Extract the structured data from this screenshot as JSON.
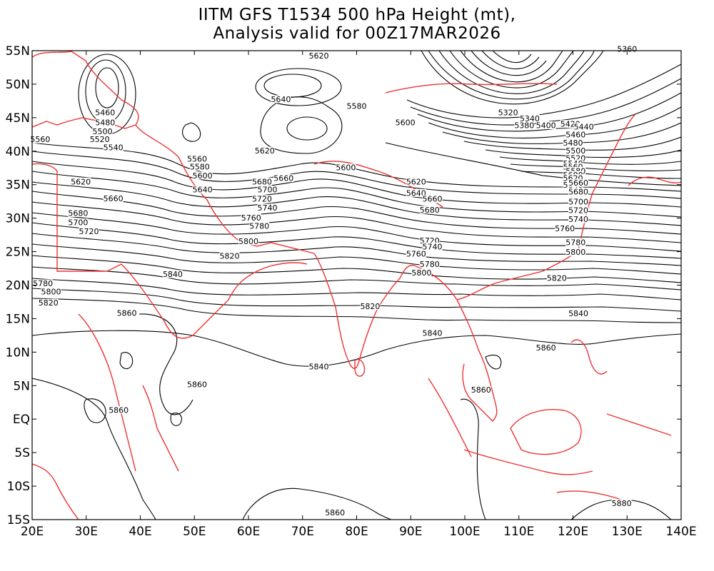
{
  "title": {
    "line1": "IITM GFS T1534 500 hPa Height (mt),",
    "line2": "Analysis valid for 00Z17MAR2026"
  },
  "axes": {
    "lat_labels": [
      "55N",
      "50N",
      "45N",
      "40N",
      "35N",
      "30N",
      "25N",
      "20N",
      "15N",
      "10N",
      "5N",
      "EQ",
      "5S",
      "10S",
      "15S"
    ],
    "lon_labels": [
      "20E",
      "30E",
      "40E",
      "50E",
      "60E",
      "70E",
      "80E",
      "90E",
      "100E",
      "110E",
      "120E",
      "130E",
      "140E"
    ],
    "lat_range": [
      -15,
      55
    ],
    "lon_range": [
      20,
      140
    ]
  },
  "colors": {
    "contour": "#000000",
    "coastline": "#ee3333"
  },
  "contour_labels": [
    {
      "text": "5620",
      "lon": 73,
      "lat": 54
    },
    {
      "text": "5360",
      "lon": 130,
      "lat": 55
    },
    {
      "text": "5640",
      "lon": 66,
      "lat": 47.5
    },
    {
      "text": "5580",
      "lon": 80,
      "lat": 46.5
    },
    {
      "text": "5460",
      "lon": 33.5,
      "lat": 45.5
    },
    {
      "text": "5480",
      "lon": 33.5,
      "lat": 44
    },
    {
      "text": "5500",
      "lon": 33,
      "lat": 42.7
    },
    {
      "text": "5520",
      "lon": 32.5,
      "lat": 41.5
    },
    {
      "text": "5540",
      "lon": 35,
      "lat": 40.3
    },
    {
      "text": "5560",
      "lon": 21.5,
      "lat": 41.5
    },
    {
      "text": "5600",
      "lon": 89,
      "lat": 44
    },
    {
      "text": "5320",
      "lon": 108,
      "lat": 45.5
    },
    {
      "text": "5340",
      "lon": 112,
      "lat": 44.6
    },
    {
      "text": "5380",
      "lon": 111,
      "lat": 43.6
    },
    {
      "text": "5400",
      "lon": 115,
      "lat": 43.6
    },
    {
      "text": "5420",
      "lon": 119.5,
      "lat": 43.8
    },
    {
      "text": "5440",
      "lon": 122,
      "lat": 43.4
    },
    {
      "text": "5460",
      "lon": 120.5,
      "lat": 42.2
    },
    {
      "text": "5480",
      "lon": 120,
      "lat": 41
    },
    {
      "text": "5500",
      "lon": 120.5,
      "lat": 39.8
    },
    {
      "text": "5520",
      "lon": 120.5,
      "lat": 38.7
    },
    {
      "text": "5540",
      "lon": 120,
      "lat": 37.9
    },
    {
      "text": "5560",
      "lon": 120,
      "lat": 37.4
    },
    {
      "text": "5580",
      "lon": 120.5,
      "lat": 36.8
    },
    {
      "text": "5600",
      "lon": 120,
      "lat": 36.2
    },
    {
      "text": "5620",
      "lon": 120,
      "lat": 35.7
    },
    {
      "text": "5640",
      "lon": 120,
      "lat": 34.7
    },
    {
      "text": "5620",
      "lon": 63,
      "lat": 39.8
    },
    {
      "text": "5560",
      "lon": 50.5,
      "lat": 38.6
    },
    {
      "text": "5580",
      "lon": 51,
      "lat": 37.4
    },
    {
      "text": "5600",
      "lon": 51.5,
      "lat": 36.1
    },
    {
      "text": "5600",
      "lon": 78,
      "lat": 37.3
    },
    {
      "text": "5620",
      "lon": 29,
      "lat": 35.2
    },
    {
      "text": "5640",
      "lon": 51.5,
      "lat": 34
    },
    {
      "text": "5680",
      "lon": 62.5,
      "lat": 35.2
    },
    {
      "text": "5660",
      "lon": 66.5,
      "lat": 35.7
    },
    {
      "text": "5700",
      "lon": 63.5,
      "lat": 34
    },
    {
      "text": "5660",
      "lon": 35,
      "lat": 32.7
    },
    {
      "text": "5620",
      "lon": 91,
      "lat": 35.2
    },
    {
      "text": "5640",
      "lon": 91,
      "lat": 33.5
    },
    {
      "text": "5660",
      "lon": 94,
      "lat": 32.6
    },
    {
      "text": "5660",
      "lon": 121,
      "lat": 35
    },
    {
      "text": "5680",
      "lon": 121,
      "lat": 33.7
    },
    {
      "text": "5720",
      "lon": 62.5,
      "lat": 32.6
    },
    {
      "text": "5740",
      "lon": 63.5,
      "lat": 31.3
    },
    {
      "text": "5680",
      "lon": 93.5,
      "lat": 31
    },
    {
      "text": "5700",
      "lon": 121,
      "lat": 32.2
    },
    {
      "text": "5680",
      "lon": 28.5,
      "lat": 30.5
    },
    {
      "text": "5720",
      "lon": 121,
      "lat": 30.9
    },
    {
      "text": "5760",
      "lon": 60.5,
      "lat": 29.8
    },
    {
      "text": "5780",
      "lon": 62,
      "lat": 28.6
    },
    {
      "text": "5740",
      "lon": 121,
      "lat": 29.6
    },
    {
      "text": "5700",
      "lon": 28.5,
      "lat": 29.1
    },
    {
      "text": "5720",
      "lon": 30.5,
      "lat": 27.8
    },
    {
      "text": "5760",
      "lon": 118.5,
      "lat": 28.2
    },
    {
      "text": "5800",
      "lon": 60,
      "lat": 26.3
    },
    {
      "text": "5720",
      "lon": 93.5,
      "lat": 26.4
    },
    {
      "text": "5740",
      "lon": 94,
      "lat": 25.5
    },
    {
      "text": "5780",
      "lon": 120.5,
      "lat": 26.1
    },
    {
      "text": "5760",
      "lon": 91,
      "lat": 24.4
    },
    {
      "text": "5800",
      "lon": 120.5,
      "lat": 24.7
    },
    {
      "text": "5820",
      "lon": 56.5,
      "lat": 24.1
    },
    {
      "text": "5780",
      "lon": 93.5,
      "lat": 22.9
    },
    {
      "text": "5800",
      "lon": 92,
      "lat": 21.6
    },
    {
      "text": "5840",
      "lon": 46,
      "lat": 21.4
    },
    {
      "text": "5820",
      "lon": 117,
      "lat": 20.8
    },
    {
      "text": "5780",
      "lon": 22,
      "lat": 20
    },
    {
      "text": "5800",
      "lon": 23.5,
      "lat": 18.8
    },
    {
      "text": "5820",
      "lon": 23,
      "lat": 17.1
    },
    {
      "text": "5820",
      "lon": 82.5,
      "lat": 16.6
    },
    {
      "text": "5860",
      "lon": 37.5,
      "lat": 15.6
    },
    {
      "text": "5840",
      "lon": 121,
      "lat": 15.5
    },
    {
      "text": "5840",
      "lon": 94,
      "lat": 12.6
    },
    {
      "text": "5860",
      "lon": 115,
      "lat": 10.4
    },
    {
      "text": "5840",
      "lon": 73,
      "lat": 7.6
    },
    {
      "text": "5860",
      "lon": 50.5,
      "lat": 4.9
    },
    {
      "text": "5860",
      "lon": 103,
      "lat": 4.1
    },
    {
      "text": "5860",
      "lon": 36,
      "lat": 1.1
    },
    {
      "text": "5880",
      "lon": 129,
      "lat": -12.8
    },
    {
      "text": "5860",
      "lon": 76,
      "lat": -14.2
    }
  ]
}
